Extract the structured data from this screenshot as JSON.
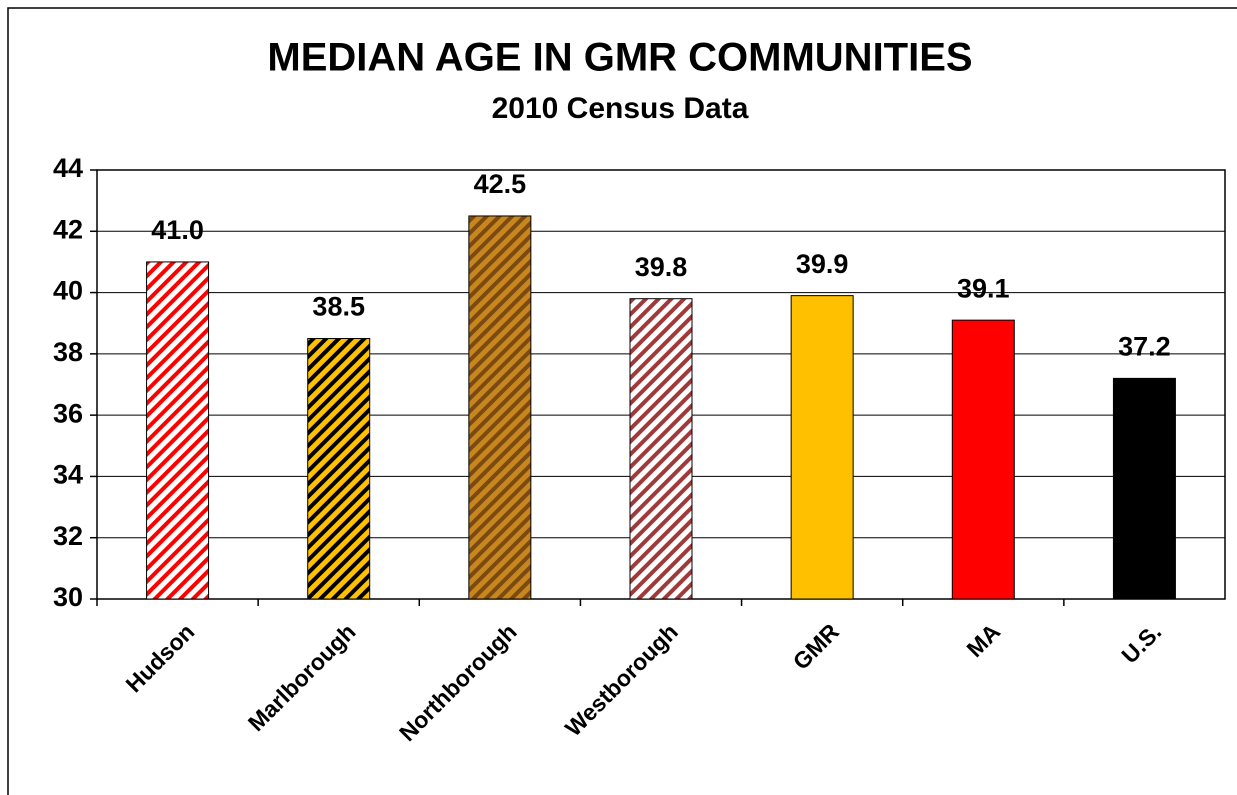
{
  "chart_data": {
    "type": "bar",
    "title": "MEDIAN AGE IN GMR COMMUNITIES",
    "subtitle": "2010 Census Data",
    "categories": [
      "Hudson",
      "Marlborough",
      "Northborough",
      "Westborough",
      "GMR",
      "MA",
      "U.S."
    ],
    "values": [
      41.0,
      38.5,
      42.5,
      39.8,
      39.9,
      39.1,
      37.2
    ],
    "value_labels": [
      "41.0",
      "38.5",
      "42.5",
      "39.8",
      "39.9",
      "39.1",
      "37.2"
    ],
    "colors": [
      "#ffffff",
      "#ffc000",
      "#c8861e",
      "#ffffff",
      "#ffc000",
      "#ff0000",
      "#000000"
    ],
    "hatch_colors": [
      "#ff0000",
      "#000000",
      "#7a4a10",
      "#a0393a",
      null,
      null,
      null
    ],
    "ylim": [
      30,
      44
    ],
    "yticks": [
      30,
      32,
      34,
      36,
      38,
      40,
      42,
      44
    ],
    "grid": true
  }
}
